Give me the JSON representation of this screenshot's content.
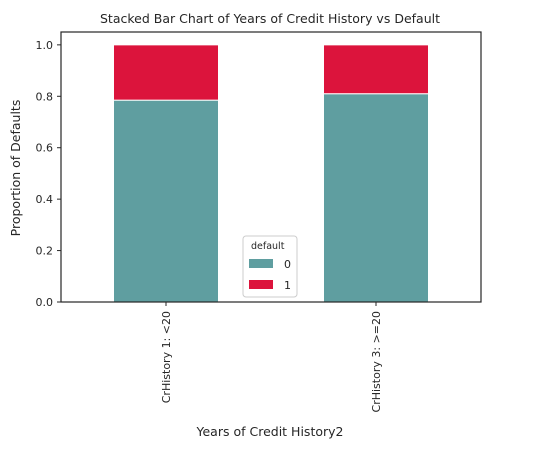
{
  "chart_data": {
    "type": "bar",
    "stacked": true,
    "title": "Stacked Bar Chart of Years of Credit History vs Default",
    "xlabel": "Years of Credit History2",
    "ylabel": "Proportion of Defaults",
    "categories": [
      "CrHistory 1: <20",
      "CrHistory 3: >=20"
    ],
    "series": [
      {
        "name": "0",
        "values": [
          0.785,
          0.81
        ],
        "color": "#5f9ea0"
      },
      {
        "name": "1",
        "values": [
          0.215,
          0.19
        ],
        "color": "#dc143c"
      }
    ],
    "ylim": [
      0,
      1.05
    ],
    "yticks": [
      "0.0",
      "0.2",
      "0.4",
      "0.6",
      "0.8",
      "1.0"
    ],
    "grid": false,
    "legend": {
      "title": "default",
      "placement": "lower-center"
    }
  }
}
